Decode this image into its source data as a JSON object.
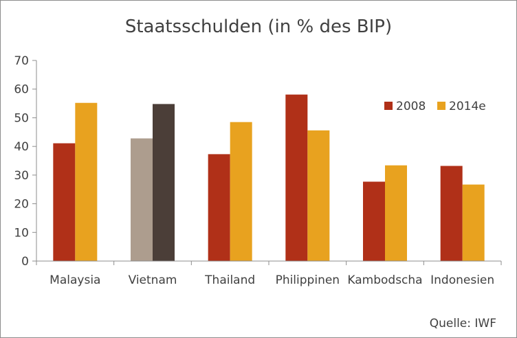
{
  "chart_data": {
    "type": "bar",
    "title": "Staatsschulden (in % des BIP)",
    "xlabel": "",
    "ylabel": "",
    "ylim": [
      0,
      70
    ],
    "yticks": [
      0,
      10,
      20,
      30,
      40,
      50,
      60,
      70
    ],
    "grid": false,
    "legend_position": "top-right",
    "categories": [
      "Malaysia",
      "Vietnam",
      "Thailand",
      "Philippinen",
      "Kambodscha",
      "Indonesien"
    ],
    "series": [
      {
        "name": "2008",
        "color": "#b03018",
        "values": [
          41.1,
          42.8,
          37.3,
          58.1,
          27.7,
          33.2
        ],
        "point_colors": [
          "#b03018",
          "#ad9d8e",
          "#b03018",
          "#b03018",
          "#b03018",
          "#b03018"
        ]
      },
      {
        "name": "2014e",
        "color": "#e8a21f",
        "values": [
          55.2,
          54.8,
          48.5,
          45.6,
          33.4,
          26.7
        ],
        "point_colors": [
          "#e8a21f",
          "#4b3e38",
          "#e8a21f",
          "#e8a21f",
          "#e8a21f",
          "#e8a21f"
        ]
      }
    ],
    "source": "Quelle: IWF"
  }
}
